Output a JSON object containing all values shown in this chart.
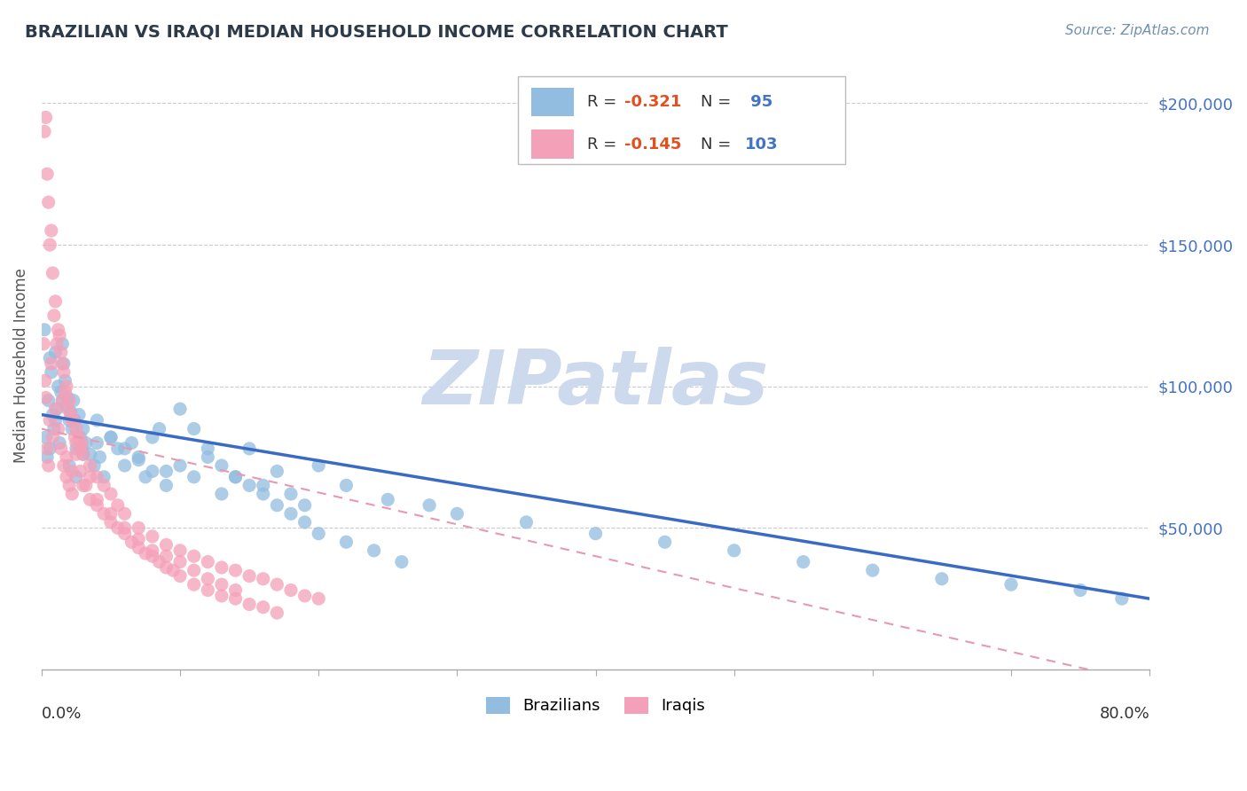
{
  "title": "BRAZILIAN VS IRAQI MEDIAN HOUSEHOLD INCOME CORRELATION CHART",
  "source": "Source: ZipAtlas.com",
  "ylabel": "Median Household Income",
  "xlim": [
    0.0,
    80.0
  ],
  "ylim": [
    0,
    215000
  ],
  "yticks": [
    50000,
    100000,
    150000,
    200000
  ],
  "ytick_labels": [
    "$50,000",
    "$100,000",
    "$150,000",
    "$200,000"
  ],
  "watermark": "ZIPatlas",
  "brazil_R": -0.321,
  "brazil_N": 95,
  "iraq_R": -0.145,
  "iraq_N": 103,
  "brazil_color": "#92bde0",
  "iraq_color": "#f4a0b8",
  "brazil_line_color": "#3a6bc4",
  "iraq_line_color": "#e899b0",
  "background_color": "#ffffff",
  "grid_color": "#cccccc",
  "ytick_color": "#4472c4",
  "title_color": "#2d3a4a",
  "source_color": "#7090b0",
  "watermark_color": "#cdd9ec",
  "legend_text_color": "#4472c4",
  "legend_r_color": "#e05020",
  "brazil_scatter_x": [
    0.3,
    0.5,
    0.4,
    0.6,
    0.8,
    0.7,
    1.0,
    1.2,
    0.9,
    1.1,
    1.5,
    1.4,
    1.3,
    1.6,
    1.8,
    1.7,
    2.0,
    1.9,
    2.2,
    2.1,
    2.5,
    2.4,
    2.3,
    2.8,
    2.7,
    3.0,
    2.9,
    3.2,
    3.5,
    3.8,
    4.0,
    4.2,
    4.5,
    5.0,
    5.5,
    6.0,
    6.5,
    7.0,
    7.5,
    8.0,
    8.5,
    9.0,
    10.0,
    11.0,
    12.0,
    13.0,
    14.0,
    15.0,
    16.0,
    17.0,
    18.0,
    19.0,
    20.0,
    22.0,
    25.0,
    28.0,
    30.0,
    35.0,
    40.0,
    45.0,
    50.0,
    55.0,
    60.0,
    65.0,
    70.0,
    75.0,
    78.0,
    0.2,
    0.6,
    1.0,
    1.5,
    2.0,
    2.5,
    3.0,
    4.0,
    5.0,
    6.0,
    7.0,
    8.0,
    9.0,
    10.0,
    11.0,
    12.0,
    13.0,
    14.0,
    15.0,
    16.0,
    17.0,
    18.0,
    19.0,
    20.0,
    22.0,
    24.0,
    26.0
  ],
  "brazil_scatter_y": [
    82000,
    95000,
    75000,
    110000,
    90000,
    105000,
    88000,
    100000,
    85000,
    92000,
    115000,
    98000,
    80000,
    108000,
    93000,
    102000,
    88000,
    96000,
    85000,
    91000,
    78000,
    88000,
    95000,
    82000,
    90000,
    85000,
    78000,
    80000,
    76000,
    72000,
    88000,
    75000,
    68000,
    82000,
    78000,
    72000,
    80000,
    75000,
    68000,
    70000,
    85000,
    65000,
    72000,
    68000,
    75000,
    62000,
    68000,
    78000,
    65000,
    70000,
    62000,
    58000,
    72000,
    65000,
    60000,
    58000,
    55000,
    52000,
    48000,
    45000,
    42000,
    38000,
    35000,
    32000,
    30000,
    28000,
    25000,
    120000,
    78000,
    112000,
    95000,
    72000,
    68000,
    76000,
    80000,
    82000,
    78000,
    74000,
    82000,
    70000,
    92000,
    85000,
    78000,
    72000,
    68000,
    65000,
    62000,
    58000,
    55000,
    52000,
    48000,
    45000,
    42000,
    38000
  ],
  "iraq_scatter_x": [
    0.2,
    0.3,
    0.5,
    0.4,
    0.6,
    0.8,
    0.7,
    1.0,
    1.2,
    0.9,
    1.1,
    1.5,
    1.4,
    1.3,
    1.6,
    1.8,
    1.7,
    2.0,
    1.9,
    2.2,
    2.1,
    2.5,
    2.4,
    2.3,
    2.8,
    2.7,
    3.0,
    2.9,
    3.5,
    4.0,
    4.5,
    5.0,
    5.5,
    6.0,
    7.0,
    8.0,
    9.0,
    10.0,
    11.0,
    12.0,
    13.0,
    14.0,
    15.0,
    16.0,
    17.0,
    18.0,
    19.0,
    20.0,
    0.4,
    0.6,
    0.8,
    1.0,
    1.2,
    1.4,
    1.6,
    1.8,
    2.0,
    2.2,
    2.5,
    2.8,
    3.2,
    3.5,
    4.0,
    4.5,
    5.0,
    5.5,
    6.0,
    6.5,
    7.0,
    7.5,
    8.0,
    8.5,
    9.0,
    9.5,
    10.0,
    11.0,
    12.0,
    13.0,
    14.0,
    15.0,
    16.0,
    17.0,
    0.3,
    0.5,
    1.5,
    2.5,
    3.5,
    0.15,
    0.25,
    0.7,
    1.8,
    2.2,
    3.0,
    4.0,
    5.0,
    6.0,
    7.0,
    8.0,
    9.0,
    10.0,
    11.0,
    12.0,
    13.0,
    14.0
  ],
  "iraq_scatter_y": [
    190000,
    195000,
    165000,
    175000,
    150000,
    140000,
    155000,
    130000,
    120000,
    125000,
    115000,
    108000,
    112000,
    118000,
    105000,
    100000,
    98000,
    95000,
    92000,
    88000,
    90000,
    85000,
    82000,
    88000,
    78000,
    82000,
    76000,
    80000,
    72000,
    68000,
    65000,
    62000,
    58000,
    55000,
    50000,
    47000,
    44000,
    42000,
    40000,
    38000,
    36000,
    35000,
    33000,
    32000,
    30000,
    28000,
    26000,
    25000,
    78000,
    88000,
    82000,
    92000,
    85000,
    78000,
    72000,
    68000,
    65000,
    62000,
    76000,
    70000,
    65000,
    60000,
    58000,
    55000,
    52000,
    50000,
    48000,
    45000,
    43000,
    41000,
    40000,
    38000,
    36000,
    35000,
    33000,
    30000,
    28000,
    26000,
    25000,
    23000,
    22000,
    20000,
    96000,
    72000,
    95000,
    80000,
    68000,
    115000,
    102000,
    108000,
    75000,
    70000,
    65000,
    60000,
    55000,
    50000,
    46000,
    42000,
    40000,
    38000,
    35000,
    32000,
    30000,
    28000
  ]
}
